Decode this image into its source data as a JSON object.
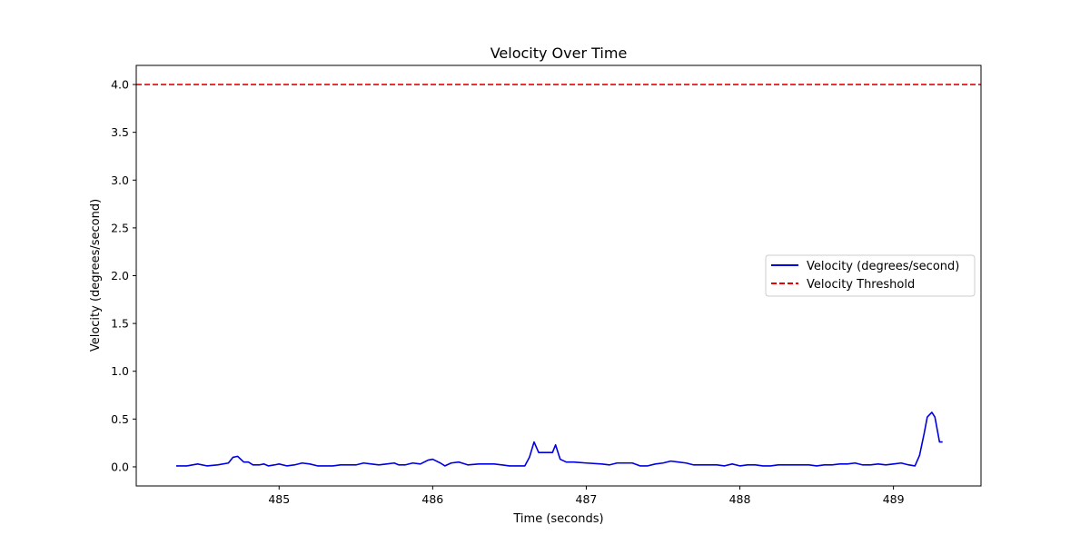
{
  "chart_data": {
    "type": "line",
    "title": "Velocity Over Time",
    "xlabel": "Time (seconds)",
    "ylabel": "Velocity (degrees/second)",
    "xlim": [
      484.07,
      489.57
    ],
    "ylim": [
      -0.2,
      4.2
    ],
    "xticks": [
      485,
      486,
      487,
      488,
      489
    ],
    "yticks": [
      0.0,
      0.5,
      1.0,
      1.5,
      2.0,
      2.5,
      3.0,
      3.5,
      4.0
    ],
    "grid": false,
    "legend_position": "center-right",
    "series": [
      {
        "name": "Velocity (degrees/second)",
        "color": "#0000dd",
        "style": "solid",
        "x": [
          484.33,
          484.4,
          484.47,
          484.53,
          484.6,
          484.67,
          484.7,
          484.73,
          484.77,
          484.8,
          484.83,
          484.87,
          484.9,
          484.93,
          484.97,
          485.0,
          485.05,
          485.1,
          485.15,
          485.2,
          485.25,
          485.3,
          485.35,
          485.4,
          485.45,
          485.5,
          485.55,
          485.6,
          485.65,
          485.7,
          485.75,
          485.78,
          485.82,
          485.87,
          485.92,
          485.97,
          486.0,
          486.05,
          486.08,
          486.12,
          486.17,
          486.23,
          486.3,
          486.35,
          486.4,
          486.45,
          486.5,
          486.55,
          486.6,
          486.63,
          486.66,
          486.69,
          486.72,
          486.78,
          486.8,
          486.83,
          486.87,
          486.92,
          487.0,
          487.1,
          487.15,
          487.2,
          487.25,
          487.3,
          487.35,
          487.4,
          487.45,
          487.5,
          487.55,
          487.6,
          487.65,
          487.7,
          487.75,
          487.8,
          487.85,
          487.9,
          487.95,
          488.0,
          488.05,
          488.1,
          488.15,
          488.2,
          488.25,
          488.3,
          488.35,
          488.4,
          488.45,
          488.5,
          488.55,
          488.6,
          488.65,
          488.7,
          488.75,
          488.8,
          488.85,
          488.9,
          488.95,
          489.0,
          489.05,
          489.1,
          489.14,
          489.17,
          489.2,
          489.22,
          489.25,
          489.27,
          489.3,
          489.32
        ],
        "y": [
          0.01,
          0.01,
          0.03,
          0.01,
          0.02,
          0.04,
          0.1,
          0.11,
          0.05,
          0.05,
          0.02,
          0.02,
          0.03,
          0.01,
          0.02,
          0.03,
          0.01,
          0.02,
          0.04,
          0.03,
          0.01,
          0.01,
          0.01,
          0.02,
          0.02,
          0.02,
          0.04,
          0.03,
          0.02,
          0.03,
          0.04,
          0.02,
          0.02,
          0.04,
          0.03,
          0.07,
          0.08,
          0.04,
          0.01,
          0.04,
          0.05,
          0.02,
          0.03,
          0.03,
          0.03,
          0.02,
          0.01,
          0.01,
          0.01,
          0.1,
          0.26,
          0.15,
          0.15,
          0.15,
          0.23,
          0.08,
          0.05,
          0.05,
          0.04,
          0.03,
          0.02,
          0.04,
          0.04,
          0.04,
          0.01,
          0.01,
          0.03,
          0.04,
          0.06,
          0.05,
          0.04,
          0.02,
          0.02,
          0.02,
          0.02,
          0.01,
          0.03,
          0.01,
          0.02,
          0.02,
          0.01,
          0.01,
          0.02,
          0.02,
          0.02,
          0.02,
          0.02,
          0.01,
          0.02,
          0.02,
          0.03,
          0.03,
          0.04,
          0.02,
          0.02,
          0.03,
          0.02,
          0.03,
          0.04,
          0.02,
          0.01,
          0.12,
          0.35,
          0.52,
          0.57,
          0.52,
          0.26,
          0.26
        ]
      },
      {
        "name": "Velocity Threshold",
        "color": "#ee0000",
        "style": "dashed",
        "constant": 4.0
      }
    ]
  }
}
